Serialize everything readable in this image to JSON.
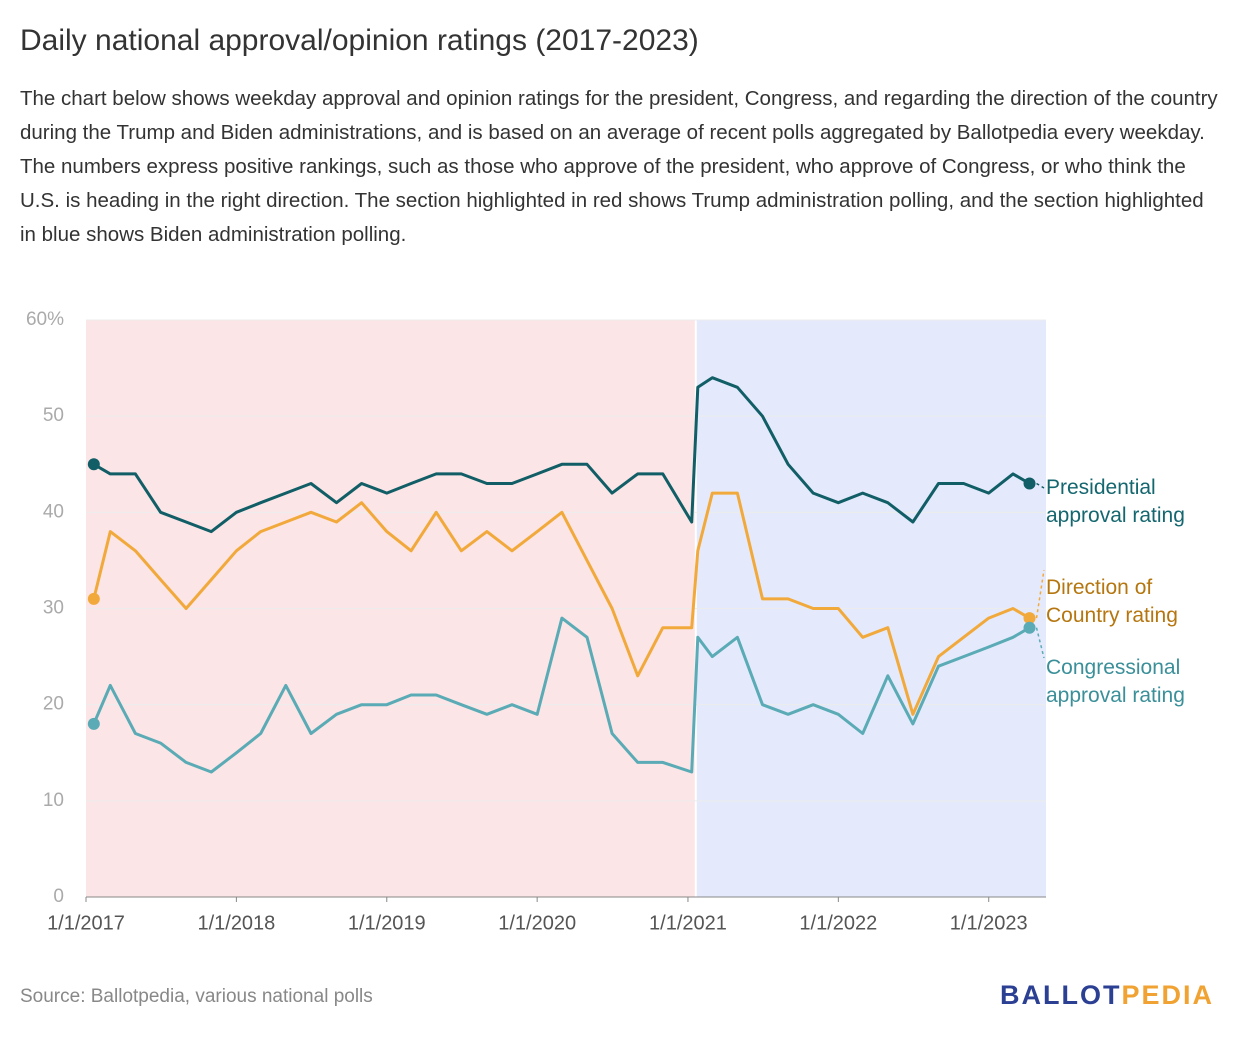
{
  "chart_data": {
    "type": "line",
    "title": "Daily national approval/opinion ratings (2017-2023)",
    "subtitle": "The chart below shows weekday approval and opinion ratings for the president, Congress, and regarding the direction of the country during the Trump and Biden administrations, and is based on an average of recent polls aggregated by Ballotpedia every weekday. The numbers express positive rankings, such as those who approve of the president, who approve of Congress, or who think the U.S. is heading in the right direction. The section highlighted in red shows Trump administration polling, and the section highlighted in blue shows Biden administration polling.",
    "source": "Source: Ballotpedia, various national polls",
    "logo": {
      "first": "BALLOT",
      "second": "PEDIA"
    },
    "x": [
      "1/20/2017",
      "3/1/2017",
      "5/1/2017",
      "7/1/2017",
      "9/1/2017",
      "11/1/2017",
      "1/1/2018",
      "3/1/2018",
      "5/1/2018",
      "7/1/2018",
      "9/1/2018",
      "11/1/2018",
      "1/1/2019",
      "3/1/2019",
      "5/1/2019",
      "7/1/2019",
      "9/1/2019",
      "11/1/2019",
      "1/1/2020",
      "3/1/2020",
      "5/1/2020",
      "7/1/2020",
      "9/1/2020",
      "11/1/2020",
      "1/10/2021",
      "1/25/2021",
      "3/1/2021",
      "5/1/2021",
      "7/1/2021",
      "9/1/2021",
      "11/1/2021",
      "1/1/2022",
      "3/1/2022",
      "5/1/2022",
      "7/1/2022",
      "9/1/2022",
      "11/1/2022",
      "1/1/2023",
      "3/1/2023",
      "4/10/2023"
    ],
    "series": [
      {
        "name": "Presidential approval rating",
        "color": "#115e67",
        "label_color": "#14666f",
        "values": [
          45,
          44,
          44,
          40,
          39,
          38,
          40,
          41,
          42,
          43,
          41,
          43,
          42,
          43,
          44,
          44,
          43,
          43,
          44,
          45,
          45,
          42,
          44,
          44,
          39,
          53,
          54,
          53,
          50,
          45,
          42,
          41,
          42,
          41,
          39,
          43,
          43,
          42,
          44,
          43
        ]
      },
      {
        "name": "Direction of Country rating",
        "color": "#f2a93b",
        "label_color": "#b5760f",
        "values": [
          31,
          38,
          36,
          33,
          30,
          33,
          36,
          38,
          39,
          40,
          39,
          41,
          38,
          36,
          40,
          36,
          38,
          36,
          38,
          40,
          35,
          30,
          23,
          28,
          28,
          36,
          42,
          42,
          31,
          31,
          30,
          30,
          27,
          28,
          19,
          25,
          27,
          29,
          30,
          29
        ]
      },
      {
        "name": "Congressional approval rating",
        "color": "#5aabb5",
        "label_color": "#3a8f99",
        "values": [
          18,
          22,
          17,
          16,
          14,
          13,
          15,
          17,
          22,
          17,
          19,
          20,
          20,
          21,
          21,
          20,
          19,
          20,
          19,
          29,
          27,
          17,
          14,
          14,
          13,
          27,
          25,
          27,
          20,
          19,
          20,
          19,
          17,
          23,
          18,
          24,
          25,
          26,
          27,
          28
        ]
      }
    ],
    "xlim": [
      "1/1/2017",
      "5/20/2023"
    ],
    "xticks": [
      "1/1/2017",
      "1/1/2018",
      "1/1/2019",
      "1/1/2020",
      "1/1/2021",
      "1/1/2022",
      "1/1/2023"
    ],
    "ylim": [
      0,
      60
    ],
    "yticks": [
      0,
      10,
      20,
      30,
      40,
      50,
      {
        "value": 60,
        "label": "60%"
      }
    ],
    "grid": true,
    "shaded_regions": [
      {
        "start": "1/1/2017",
        "end": "1/20/2021",
        "color": "#fbe5e6"
      },
      {
        "start": "1/20/2021",
        "end": "5/20/2023",
        "color": "#e4eafb"
      }
    ]
  }
}
